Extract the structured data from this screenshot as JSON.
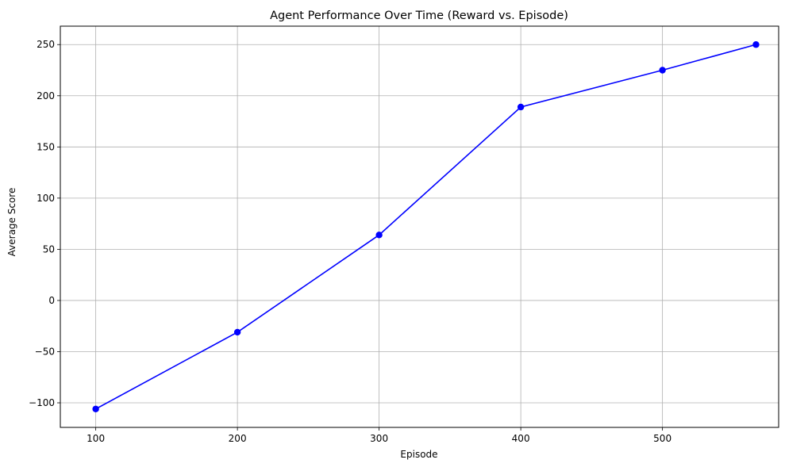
{
  "chart_data": {
    "type": "line",
    "title": "Agent Performance Over Time (Reward vs. Episode)",
    "xlabel": "Episode",
    "ylabel": "Average Score",
    "xlim": [
      75,
      582
    ],
    "ylim": [
      -124,
      268
    ],
    "xticks": [
      100,
      200,
      300,
      400,
      500
    ],
    "yticks": [
      -100,
      -50,
      0,
      50,
      100,
      150,
      200,
      250
    ],
    "grid": true,
    "legend": "none",
    "series": [
      {
        "color": "#0000ff",
        "marker": "circle",
        "x": [
          100,
          200,
          300,
          400,
          500,
          566
        ],
        "y": [
          -106,
          -31,
          64,
          189,
          225,
          250
        ]
      }
    ]
  }
}
